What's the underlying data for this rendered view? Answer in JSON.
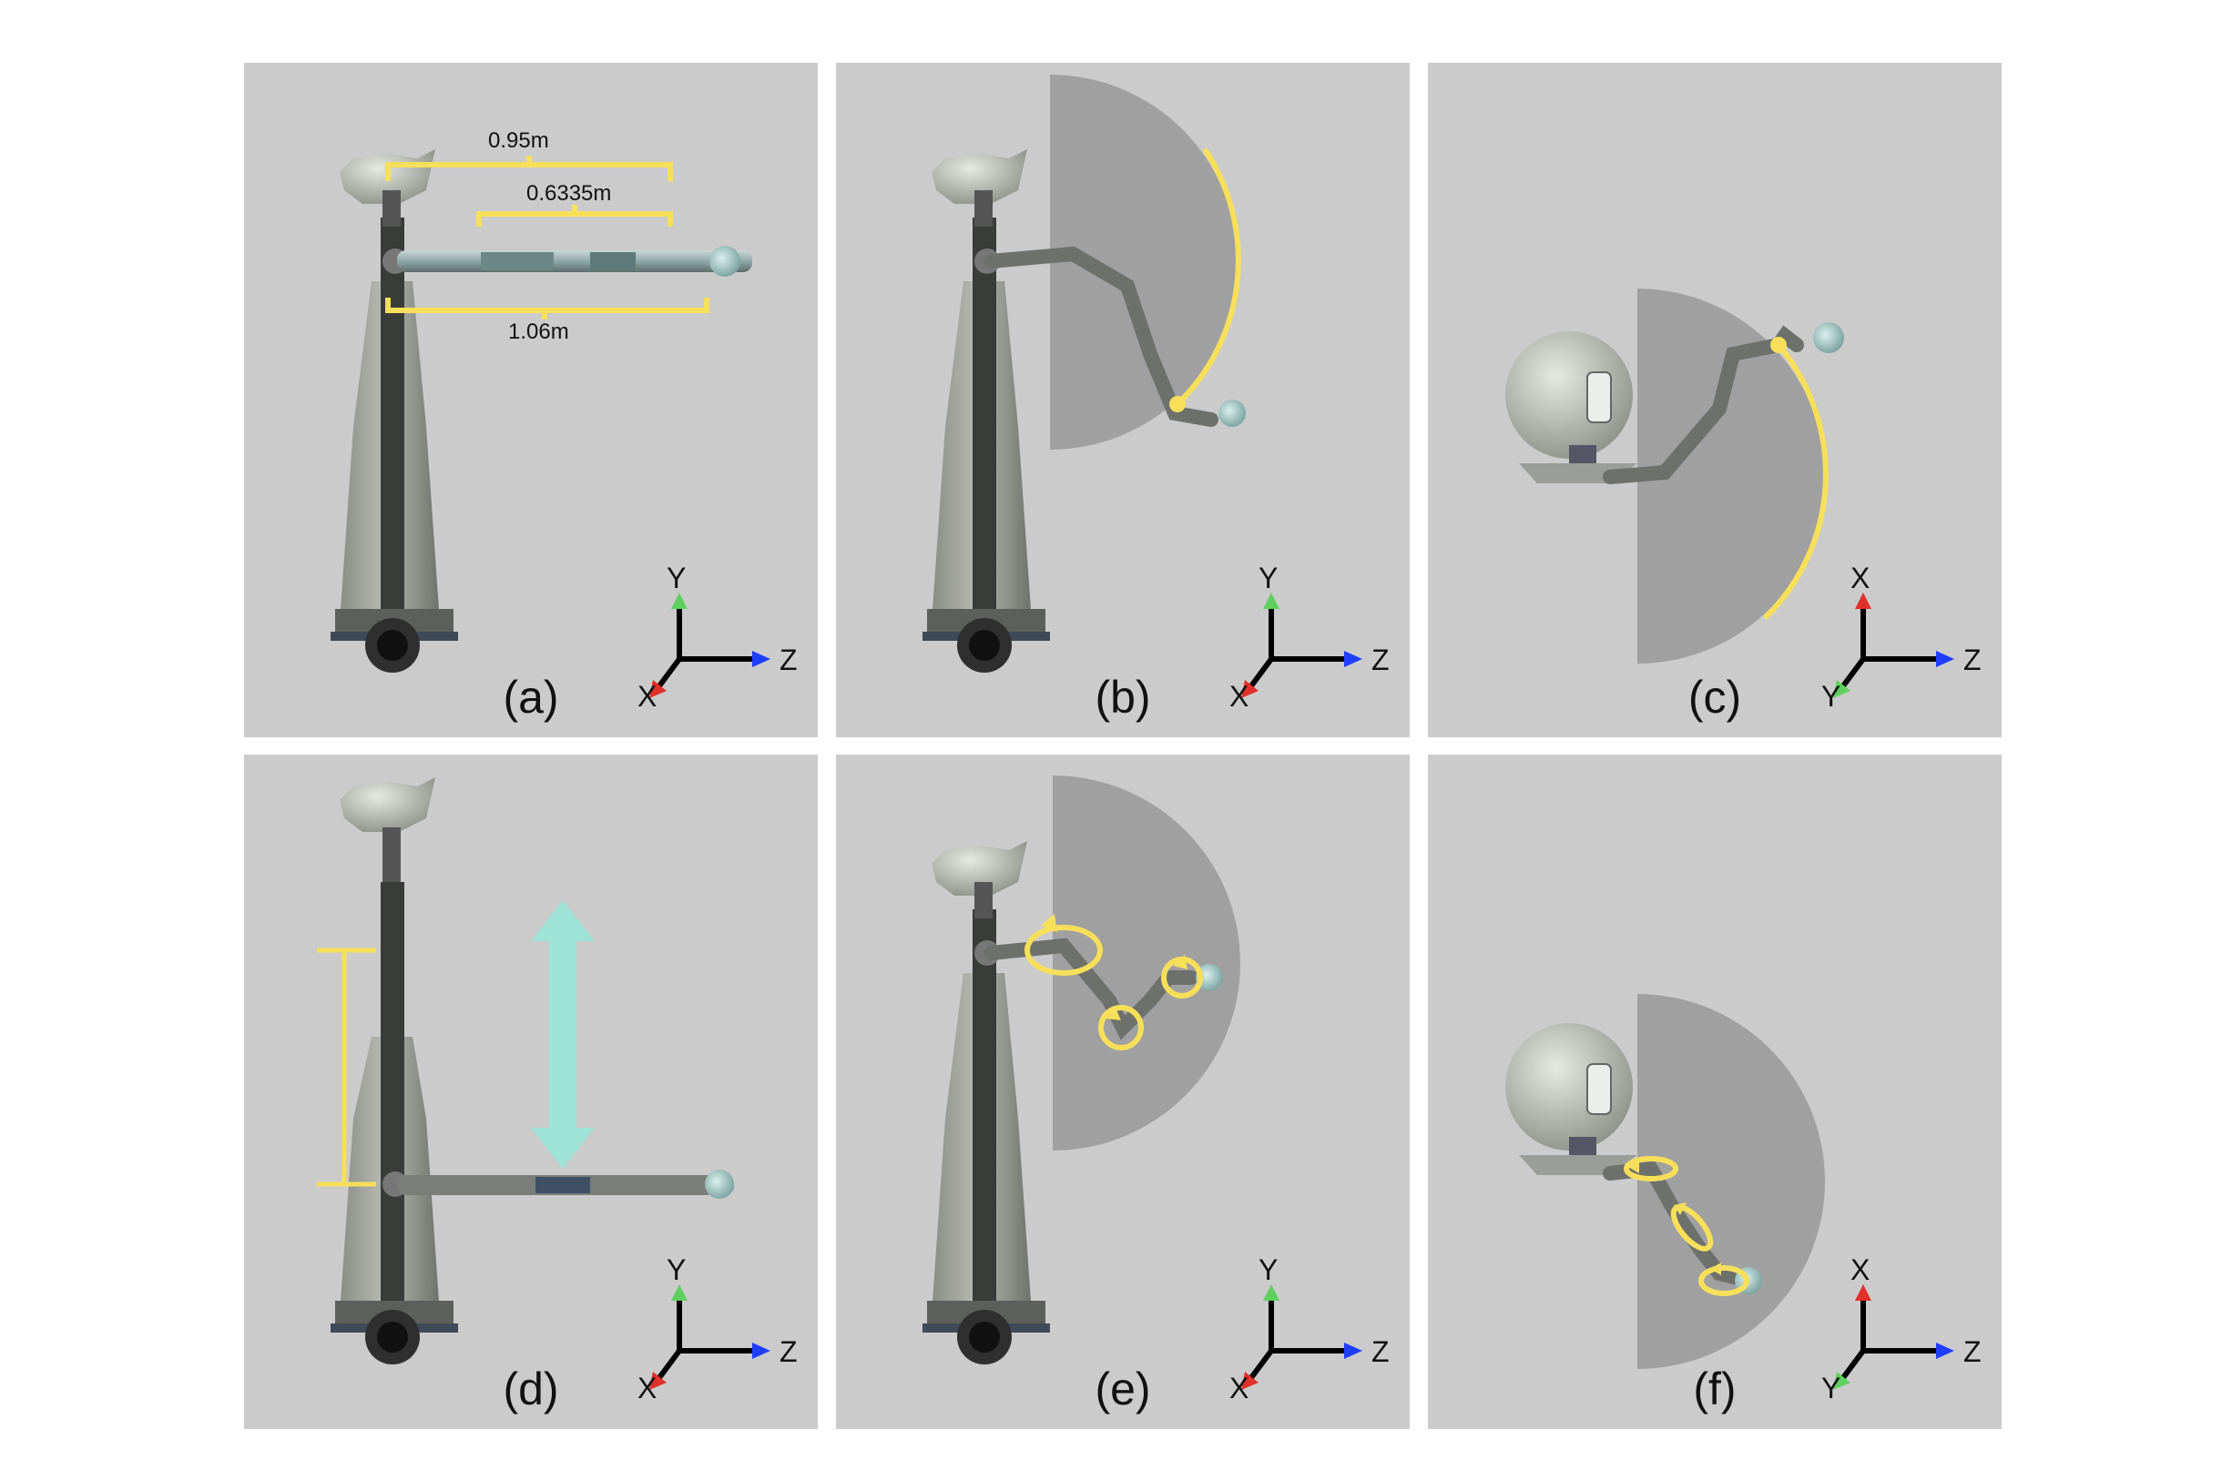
{
  "panels": [
    {
      "id": "a",
      "label": "(a)",
      "axes": {
        "up": "Y",
        "right": "Z",
        "diag": "X"
      }
    },
    {
      "id": "b",
      "label": "(b)",
      "axes": {
        "up": "Y",
        "right": "Z",
        "diag": "X"
      }
    },
    {
      "id": "c",
      "label": "(c)",
      "axes": {
        "up": "X",
        "right": "Z",
        "diag": "Y"
      }
    },
    {
      "id": "d",
      "label": "(d)",
      "axes": {
        "up": "Y",
        "right": "Z",
        "diag": "X"
      }
    },
    {
      "id": "e",
      "label": "(e)",
      "axes": {
        "up": "Y",
        "right": "Z",
        "diag": "X"
      }
    },
    {
      "id": "f",
      "label": "(f)",
      "axes": {
        "up": "X",
        "right": "Z",
        "diag": "Y"
      }
    }
  ],
  "dimensions": {
    "top": "0.95m",
    "middle": "0.6335m",
    "bottom": "1.06m"
  },
  "colors": {
    "panel_bg": "#cbcbcb",
    "workspace": "#a0a0a0",
    "highlight": "#f7df5a",
    "arrow_teal": "#9fe3d6",
    "axis_y_green": "#5fd05f",
    "axis_z_blue": "#1f3fff",
    "axis_x_red": "#e0302a"
  }
}
